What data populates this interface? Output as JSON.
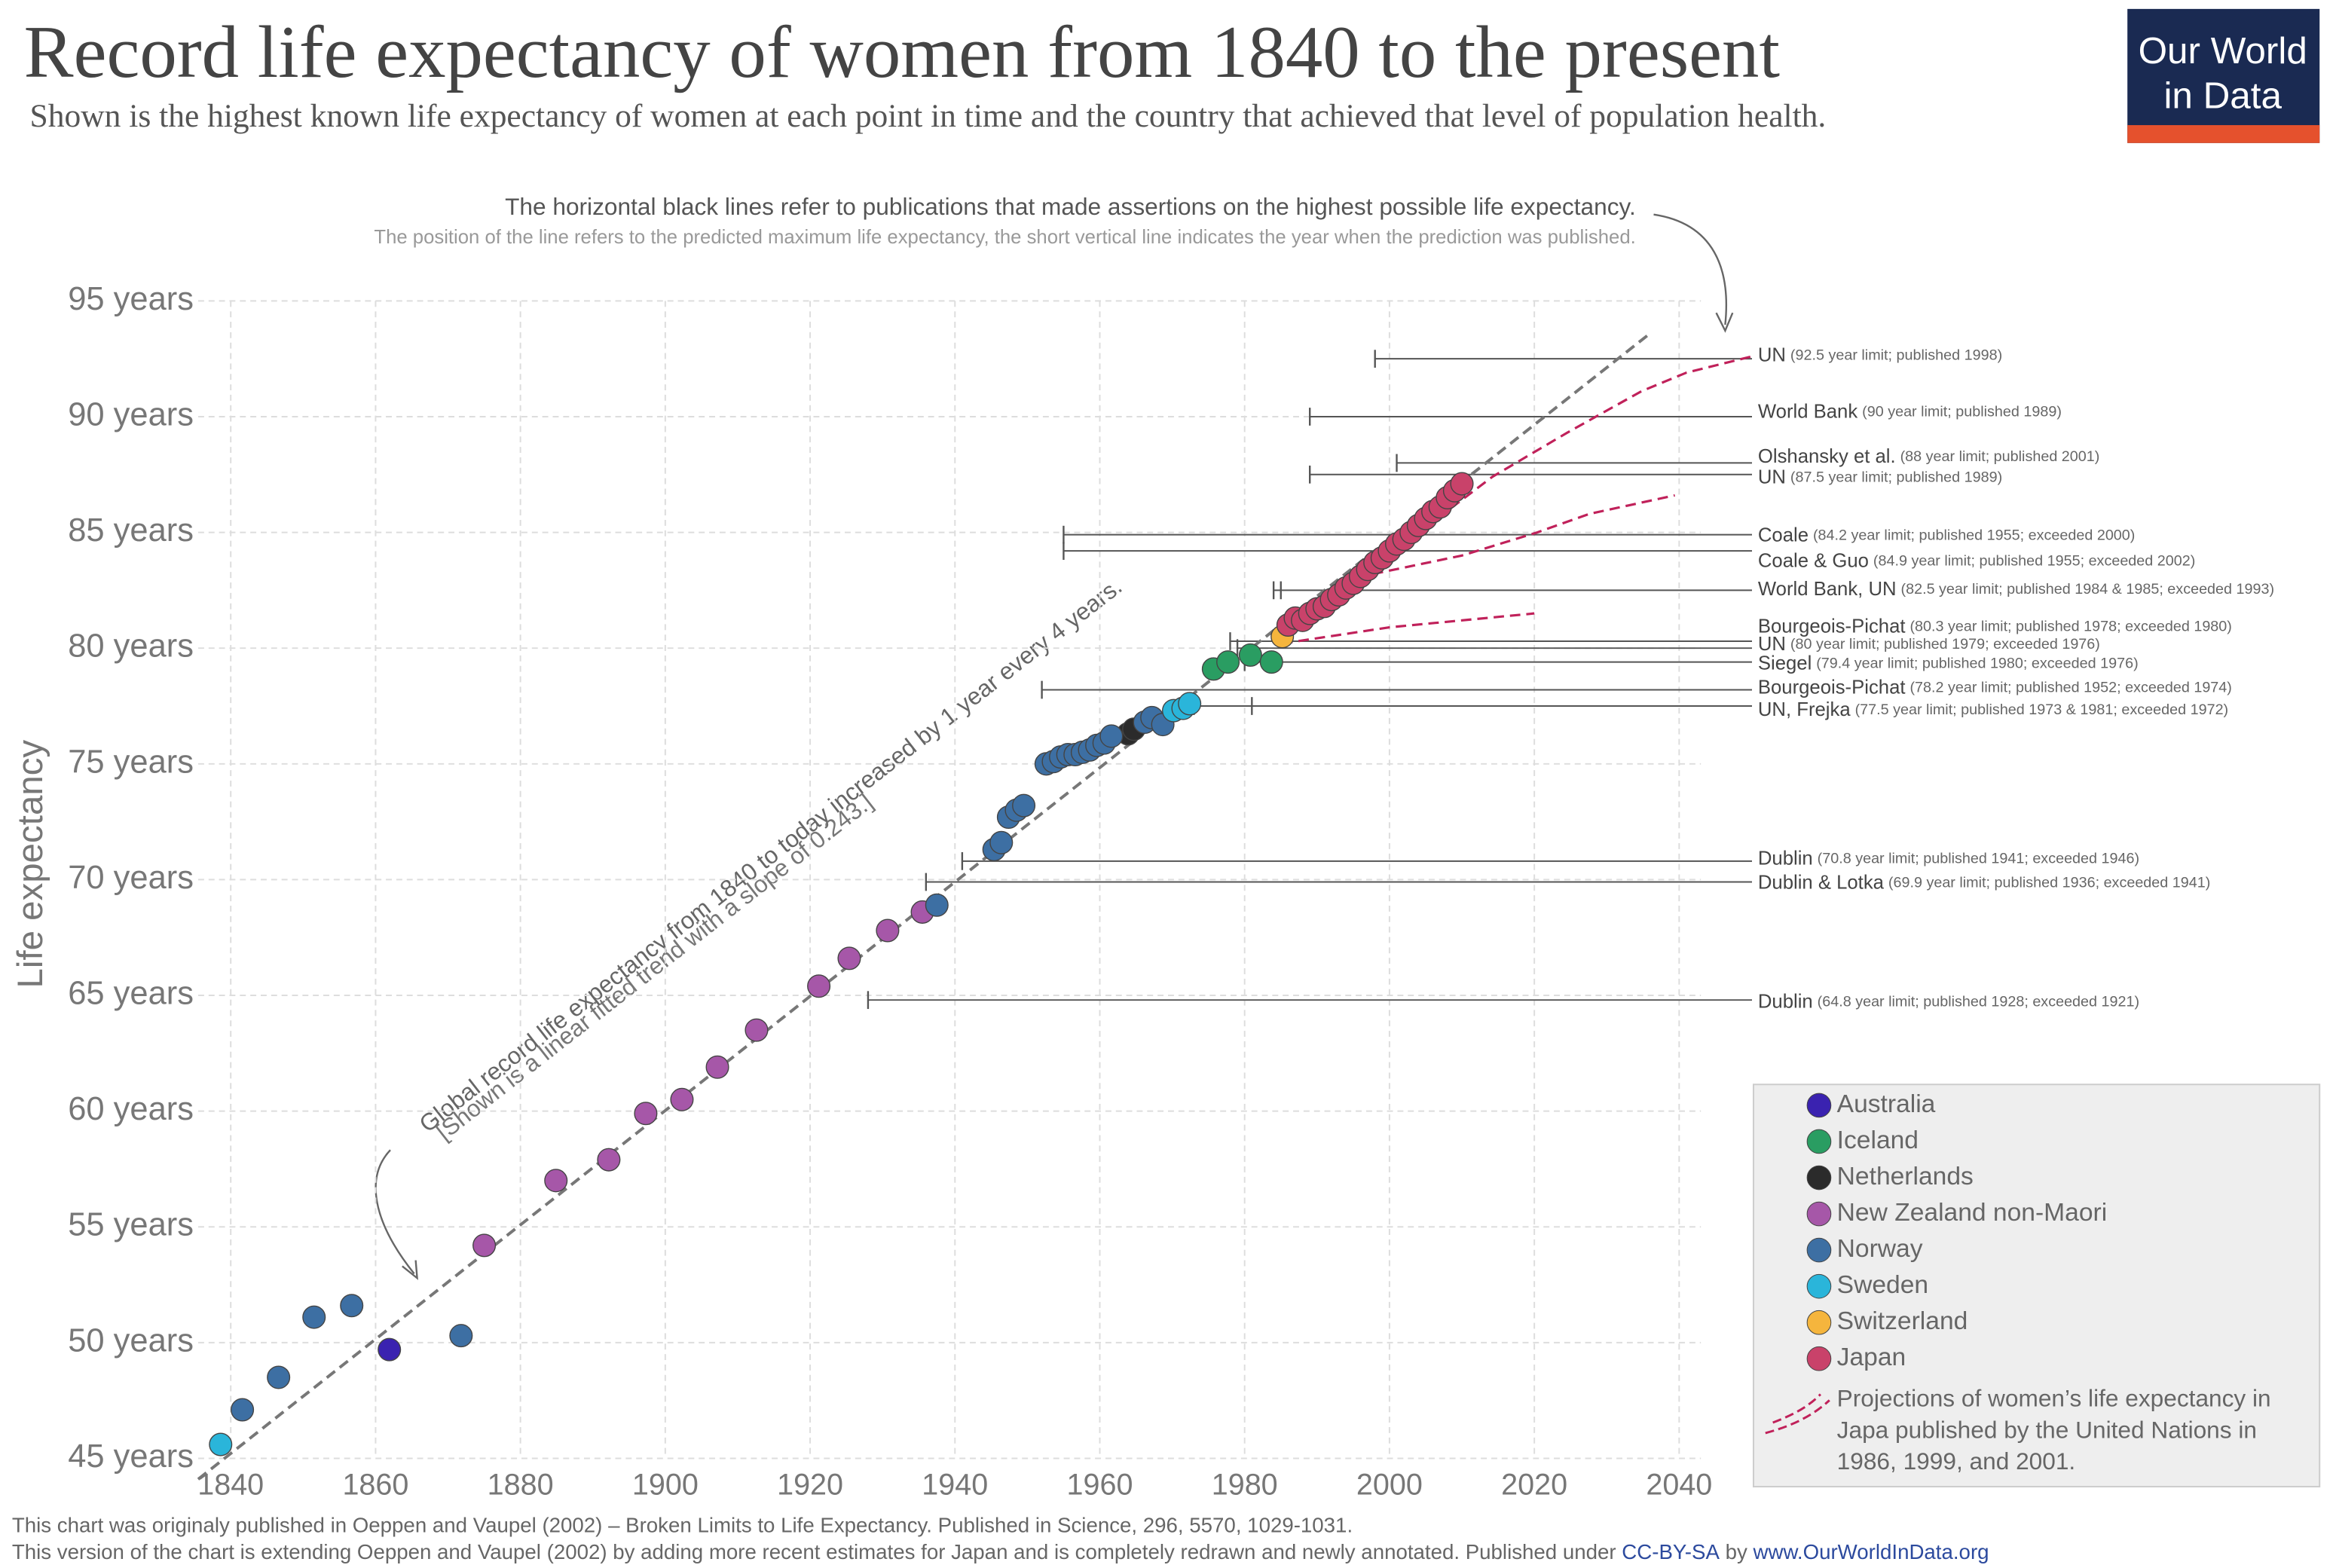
{
  "chart_data": {
    "type": "scatter",
    "title": "Record life expectancy of women from 1840 to the present",
    "subtitle": "Shown is the highest known life expectancy of women at each point in time and the country that achieved that level of population health.",
    "logo": [
      "Our World",
      "in Data"
    ],
    "y_label": "Life expectancy",
    "annotation_top": [
      "The horizontal black lines refer to publications that made assertions on the highest possible life expectancy.",
      "The position of the line refers to the predicted maximum life expectancy, the short vertical line indicates the year when the prediction was published."
    ],
    "annotation_trend": [
      "Global record life expectancy from 1840 to today increased by 1 year every 4 years.",
      "[Shown is a linear fitted trend with a slope of 0.243.]"
    ],
    "xlim": [
      1835.5,
      2043
    ],
    "ylim": [
      45,
      95
    ],
    "xticks": [
      1840,
      1860,
      1880,
      1900,
      1920,
      1940,
      1960,
      1980,
      2000,
      2020,
      2040
    ],
    "yticks": [
      {
        "value": 45,
        "label": "45 years"
      },
      {
        "value": 50,
        "label": "50 years"
      },
      {
        "value": 55,
        "label": "55 years"
      },
      {
        "value": 60,
        "label": "60 years"
      },
      {
        "value": 65,
        "label": "65 years"
      },
      {
        "value": 70,
        "label": "70 years"
      },
      {
        "value": 75,
        "label": "75 years"
      },
      {
        "value": 80,
        "label": "80 years"
      },
      {
        "value": 85,
        "label": "85 years"
      },
      {
        "value": 90,
        "label": "90 years"
      },
      {
        "value": 95,
        "label": "95 years"
      }
    ],
    "grid": true,
    "series": [
      {
        "name": "Australia",
        "color": "#3a22b0",
        "x": [
          1861.9
        ],
        "values": [
          49.7
        ]
      },
      {
        "name": "Iceland",
        "color": "#2a9d62",
        "x": [
          1975.7,
          1977.7,
          1980.8,
          1983.7
        ],
        "values": [
          79.1,
          79.4,
          79.7,
          79.4
        ]
      },
      {
        "name": "Netherlands",
        "color": "#2b2b2b",
        "x": [
          1963.9,
          1964.7
        ],
        "values": [
          76.3,
          76.5
        ]
      },
      {
        "name": "New Zealand non-Maori",
        "color": "#a657a8",
        "x": [
          1875,
          1884.9,
          1892.2,
          1897.3,
          1902.3,
          1907.2,
          1912.6,
          1921.2,
          1925.4,
          1930.7,
          1935.5
        ],
        "values": [
          54.2,
          57.0,
          57.9,
          59.9,
          60.5,
          61.9,
          63.5,
          65.4,
          66.6,
          67.8,
          68.6
        ]
      },
      {
        "name": "Norway",
        "color": "#3d6fa3",
        "x": [
          1841.6,
          1846.6,
          1851.5,
          1856.7,
          1871.8,
          1937.5,
          1945.4,
          1946.4,
          1947.4,
          1948.5,
          1949.5,
          1952.6,
          1953.6,
          1954.6,
          1955.6,
          1956.6,
          1957.6,
          1958.6,
          1959.6,
          1960.6,
          1961.6,
          1966.2,
          1967.2,
          1968.7
        ],
        "values": [
          47.1,
          48.5,
          51.1,
          51.6,
          50.3,
          68.9,
          71.3,
          71.6,
          72.7,
          73.0,
          73.2,
          75.0,
          75.1,
          75.3,
          75.4,
          75.4,
          75.5,
          75.6,
          75.8,
          75.9,
          76.2,
          76.8,
          77.0,
          76.7
        ]
      },
      {
        "name": "Sweden",
        "color": "#2ab5da",
        "x": [
          1838.6,
          1970.2,
          1971.5,
          1972.4
        ],
        "values": [
          45.6,
          77.3,
          77.4,
          77.6
        ]
      },
      {
        "name": "Switzerland",
        "color": "#f5b53d",
        "x": [
          1985.2
        ],
        "values": [
          80.5
        ]
      },
      {
        "name": "Japan",
        "color": "#c9426a",
        "x": [
          1986,
          1987,
          1988,
          1989,
          1990,
          1991,
          1992,
          1993,
          1994,
          1995,
          1996,
          1997,
          1998,
          1999,
          2000,
          2001,
          2002,
          2003,
          2004,
          2005,
          2006,
          2007,
          2008,
          2009,
          2010
        ],
        "values": [
          81.0,
          81.3,
          81.2,
          81.5,
          81.7,
          81.8,
          82.1,
          82.3,
          82.6,
          82.8,
          83.1,
          83.4,
          83.7,
          83.9,
          84.2,
          84.5,
          84.7,
          85.0,
          85.3,
          85.6,
          85.9,
          86.1,
          86.5,
          86.8,
          87.1
        ]
      }
    ],
    "trend": {
      "x": [
        1835.5,
        2036
      ],
      "values": [
        44.1,
        93.6
      ],
      "color": "#777777"
    },
    "limits": [
      {
        "name": "UN",
        "note": "(92.5 year limit; published 1998)",
        "limit": 92.5,
        "published": [
          1998
        ]
      },
      {
        "name": "World Bank",
        "note": "(90 year limit; published 1989)",
        "limit": 90,
        "published": [
          1989
        ]
      },
      {
        "name": "Olshansky et al.",
        "note": "(88 year limit; published 2001)",
        "limit": 88,
        "published": [
          2001
        ]
      },
      {
        "name": "UN",
        "note": "(87.5 year limit; published 1989)",
        "limit": 87.5,
        "published": [
          1989
        ]
      },
      {
        "name": "Coale",
        "note": "(84.2 year limit; published 1955; exceeded 2000)",
        "limit": 84.2,
        "published": [
          1955
        ]
      },
      {
        "name": "Coale & Guo",
        "note": "(84.9 year limit; published 1955; exceeded 2002)",
        "limit": 84.9,
        "published": [
          1955
        ]
      },
      {
        "name": "World Bank, UN",
        "note": "(82.5 year limit; published 1984 & 1985; exceeded 1993)",
        "limit": 82.5,
        "published": [
          1984,
          1985
        ]
      },
      {
        "name": "Bourgeois-Pichat",
        "note": "(80.3 year limit; published 1978; exceeded 1980)",
        "limit": 80.3,
        "published": [
          1978
        ]
      },
      {
        "name": "UN",
        "note": "(80 year limit; published 1979; exceeded 1976)",
        "limit": 80,
        "published": [
          1979
        ]
      },
      {
        "name": "Siegel",
        "note": "(79.4 year limit; published 1980; exceeded 1976)",
        "limit": 79.4,
        "published": [
          1980
        ]
      },
      {
        "name": "Bourgeois-Pichat",
        "note": "(78.2 year limit; published 1952; exceeded 1974)",
        "limit": 78.2,
        "published": [
          1952
        ]
      },
      {
        "name": "UN, Frejka",
        "note": "(77.5 year limit; published 1973 & 1981; exceeded 1972)",
        "limit": 77.5,
        "published": [
          1973,
          1981
        ]
      },
      {
        "name": "Dublin",
        "note": "(70.8 year limit; published 1941; exceeded 1946)",
        "limit": 70.8,
        "published": [
          1941
        ]
      },
      {
        "name": "Dublin & Lotka",
        "note": "(69.9 year limit; published 1936; exceeded 1941)",
        "limit": 69.9,
        "published": [
          1936
        ]
      },
      {
        "name": "Dublin",
        "note": "(64.8 year limit; published 1928; exceeded 1921)",
        "limit": 64.8,
        "published": [
          1928
        ]
      }
    ],
    "projection_color": "#c0215a",
    "projections": [
      {
        "x": [
          1985.2,
          2000,
          2020
        ],
        "values": [
          80.2,
          80.9,
          81.5
        ]
      },
      {
        "x": [
          1997.7,
          2010,
          2020.4,
          2027.6,
          2039.4
        ],
        "values": [
          83.2,
          84.0,
          85.0,
          85.8,
          86.6
        ]
      },
      {
        "x": [
          2004.9,
          2014.2,
          2024.5,
          2034.8,
          2041,
          2050
        ],
        "values": [
          85.2,
          87.4,
          89.3,
          91.1,
          91.9,
          92.6
        ]
      }
    ],
    "projection_legend": [
      "Projections of women’s life expectancy in",
      "Japa published by the United Nations in",
      "1986, 1999, and 2001."
    ],
    "footer": [
      "This chart was originaly published in Oeppen and Vaupel (2002) – Broken Limits to Life Expectancy. Published in Science, 296, 5570, 1029-1031.",
      "This version of the chart is extending Oeppen and Vaupel (2002) by adding more recent estimates for Japan and is completely redrawn and newly annotated. Published under "
    ],
    "license": "CC-BY-SA",
    "footer_by": " by ",
    "site": "www.OurWorldInData.org"
  }
}
